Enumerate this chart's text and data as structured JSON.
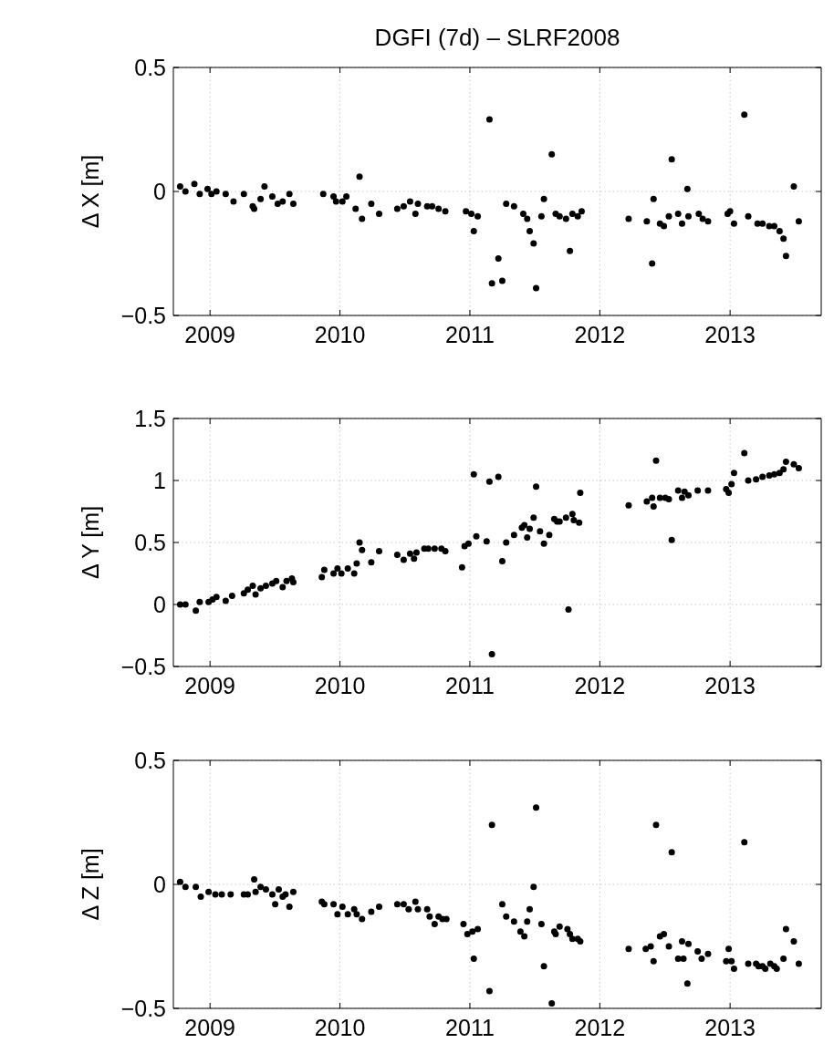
{
  "chart_data": [
    {
      "type": "scatter",
      "title": "DGFI (7d) – SLRF2008",
      "ylabel": "Δ X [m]",
      "color": "#000000",
      "marker": "circle",
      "grid": true,
      "xlim": [
        "2008-09-20",
        "2013-09-14"
      ],
      "xticks": [
        "2009",
        "2010",
        "2011",
        "2012",
        "2013"
      ],
      "ylim": [
        -0.5,
        0.5
      ],
      "yticks": [
        -0.5,
        0,
        0.5
      ],
      "x": [
        "2008-10-09",
        "2008-10-24",
        "2008-11-18",
        "2008-12-03",
        "2008-12-25",
        "2009-01-05",
        "2009-01-19",
        "2009-02-14",
        "2009-03-08",
        "2009-04-06",
        "2009-05-01",
        "2009-05-05",
        "2009-05-23",
        "2009-06-03",
        "2009-06-25",
        "2009-07-10",
        "2009-07-24",
        "2009-08-12",
        "2009-08-23",
        "2009-11-15",
        "2009-12-14",
        "2009-12-21",
        "2010-01-08",
        "2010-01-19",
        "2010-02-14",
        "2010-02-25",
        "2010-03-04",
        "2010-03-30",
        "2010-04-21",
        "2010-06-11",
        "2010-06-29",
        "2010-07-17",
        "2010-08-01",
        "2010-08-08",
        "2010-09-03",
        "2010-09-17",
        "2010-10-05",
        "2010-10-24",
        "2010-12-21",
        "2011-01-05",
        "2011-01-12",
        "2011-01-23",
        "2011-02-25",
        "2011-03-04",
        "2011-03-22",
        "2011-04-02",
        "2011-04-13",
        "2011-05-05",
        "2011-05-31",
        "2011-06-11",
        "2011-06-18",
        "2011-06-29",
        "2011-07-06",
        "2011-07-21",
        "2011-07-28",
        "2011-08-19",
        "2011-08-30",
        "2011-09-10",
        "2011-09-28",
        "2011-10-09",
        "2011-10-16",
        "2011-10-31",
        "2011-11-11",
        "2012-03-22",
        "2012-05-12",
        "2012-05-27",
        "2012-05-31",
        "2012-06-18",
        "2012-06-29",
        "2012-07-13",
        "2012-07-21",
        "2012-08-08",
        "2012-08-19",
        "2012-09-03",
        "2012-09-06",
        "2012-10-05",
        "2012-10-16",
        "2012-10-31",
        "2012-12-25",
        "2013-01-01",
        "2013-01-12",
        "2013-02-10",
        "2013-02-21",
        "2013-03-19",
        "2013-04-02",
        "2013-04-21",
        "2013-05-05",
        "2013-05-20",
        "2013-05-31",
        "2013-06-07",
        "2013-06-29",
        "2013-07-13"
      ],
      "values": [
        0.02,
        0.0,
        0.03,
        -0.01,
        0.01,
        -0.01,
        0.0,
        -0.01,
        -0.04,
        -0.01,
        -0.06,
        -0.07,
        -0.03,
        0.02,
        -0.02,
        -0.05,
        -0.04,
        -0.01,
        -0.05,
        -0.01,
        -0.02,
        -0.04,
        -0.04,
        -0.02,
        -0.07,
        0.06,
        -0.11,
        -0.05,
        -0.09,
        -0.07,
        -0.06,
        -0.04,
        -0.09,
        -0.05,
        -0.06,
        -0.06,
        -0.07,
        -0.08,
        -0.08,
        -0.09,
        -0.16,
        -0.1,
        0.29,
        -0.37,
        -0.27,
        -0.36,
        -0.05,
        -0.06,
        -0.09,
        -0.11,
        -0.16,
        -0.21,
        -0.39,
        -0.1,
        -0.03,
        0.15,
        -0.09,
        -0.1,
        -0.11,
        -0.24,
        -0.09,
        -0.1,
        -0.08,
        -0.11,
        -0.12,
        -0.29,
        -0.03,
        -0.13,
        -0.14,
        -0.1,
        0.13,
        -0.09,
        -0.13,
        0.01,
        -0.1,
        -0.09,
        -0.11,
        -0.12,
        -0.09,
        -0.08,
        -0.13,
        0.31,
        -0.1,
        -0.13,
        -0.13,
        -0.14,
        -0.14,
        -0.16,
        -0.19,
        -0.26,
        0.02,
        -0.12
      ]
    },
    {
      "type": "scatter",
      "ylabel": "Δ Y [m]",
      "color": "#000000",
      "marker": "circle",
      "grid": true,
      "xlim": [
        "2008-09-20",
        "2013-09-14"
      ],
      "xticks": [
        "2009",
        "2010",
        "2011",
        "2012",
        "2013"
      ],
      "ylim": [
        -0.5,
        1.5
      ],
      "yticks": [
        -0.5,
        0,
        0.5,
        1,
        1.5
      ],
      "x": [
        "2008-10-09",
        "2008-10-24",
        "2008-11-22",
        "2008-12-03",
        "2008-12-28",
        "2009-01-08",
        "2009-01-19",
        "2009-02-14",
        "2009-03-04",
        "2009-04-06",
        "2009-04-17",
        "2009-05-01",
        "2009-05-09",
        "2009-05-23",
        "2009-06-07",
        "2009-06-25",
        "2009-07-06",
        "2009-07-24",
        "2009-08-04",
        "2009-08-19",
        "2009-08-23",
        "2009-11-11",
        "2009-11-18",
        "2009-12-14",
        "2009-12-25",
        "2010-01-05",
        "2010-01-23",
        "2010-02-10",
        "2010-02-17",
        "2010-02-25",
        "2010-03-04",
        "2010-03-30",
        "2010-04-21",
        "2010-06-11",
        "2010-06-29",
        "2010-07-17",
        "2010-07-28",
        "2010-08-04",
        "2010-08-26",
        "2010-09-06",
        "2010-09-24",
        "2010-10-13",
        "2010-10-24",
        "2010-12-10",
        "2010-12-17",
        "2010-12-28",
        "2011-01-12",
        "2011-01-19",
        "2011-02-17",
        "2011-02-25",
        "2011-03-04",
        "2011-03-22",
        "2011-04-02",
        "2011-04-13",
        "2011-05-05",
        "2011-05-27",
        "2011-06-03",
        "2011-06-11",
        "2011-06-18",
        "2011-06-29",
        "2011-07-06",
        "2011-07-17",
        "2011-07-28",
        "2011-08-12",
        "2011-08-26",
        "2011-09-03",
        "2011-09-10",
        "2011-09-28",
        "2011-10-05",
        "2011-10-16",
        "2011-10-20",
        "2011-11-04",
        "2011-11-07",
        "2012-03-22",
        "2012-05-12",
        "2012-05-27",
        "2012-05-31",
        "2012-06-07",
        "2012-06-18",
        "2012-07-03",
        "2012-07-13",
        "2012-07-21",
        "2012-08-08",
        "2012-08-19",
        "2012-08-26",
        "2012-09-06",
        "2012-10-02",
        "2012-10-31",
        "2012-12-21",
        "2012-12-28",
        "2013-01-05",
        "2013-01-12",
        "2013-02-10",
        "2013-02-21",
        "2013-03-15",
        "2013-04-02",
        "2013-04-21",
        "2013-05-05",
        "2013-05-20",
        "2013-05-31",
        "2013-06-07",
        "2013-06-29",
        "2013-07-13"
      ],
      "values": [
        0.0,
        0.0,
        -0.05,
        0.02,
        0.02,
        0.04,
        0.06,
        0.03,
        0.07,
        0.09,
        0.12,
        0.15,
        0.08,
        0.13,
        0.15,
        0.17,
        0.19,
        0.14,
        0.19,
        0.21,
        0.18,
        0.22,
        0.28,
        0.25,
        0.29,
        0.25,
        0.29,
        0.25,
        0.33,
        0.5,
        0.44,
        0.34,
        0.43,
        0.4,
        0.36,
        0.41,
        0.37,
        0.42,
        0.45,
        0.45,
        0.45,
        0.45,
        0.43,
        0.3,
        0.47,
        0.49,
        1.05,
        0.55,
        0.51,
        0.99,
        -0.4,
        1.03,
        0.35,
        0.5,
        0.56,
        0.62,
        0.64,
        0.54,
        0.61,
        0.7,
        0.95,
        0.59,
        0.49,
        0.56,
        0.69,
        0.67,
        0.67,
        0.7,
        -0.04,
        0.73,
        0.68,
        0.66,
        0.9,
        0.8,
        0.83,
        0.86,
        0.79,
        1.16,
        0.86,
        0.86,
        0.85,
        0.52,
        0.92,
        0.86,
        0.91,
        0.88,
        0.92,
        0.92,
        0.93,
        0.9,
        0.97,
        1.06,
        1.22,
        1.0,
        1.01,
        1.03,
        1.04,
        1.05,
        1.06,
        1.09,
        1.15,
        1.13,
        1.1
      ]
    },
    {
      "type": "scatter",
      "ylabel": "Δ Z [m]",
      "color": "#000000",
      "marker": "circle",
      "grid": true,
      "xlim": [
        "2008-09-20",
        "2013-09-14"
      ],
      "xticks": [
        "2009",
        "2010",
        "2011",
        "2012",
        "2013"
      ],
      "ylim": [
        -0.5,
        0.5
      ],
      "yticks": [
        -0.5,
        0,
        0.5
      ],
      "x": [
        "2008-10-09",
        "2008-10-24",
        "2008-11-22",
        "2008-12-06",
        "2008-12-28",
        "2009-01-16",
        "2009-02-03",
        "2009-02-28",
        "2009-04-06",
        "2009-04-17",
        "2009-05-05",
        "2009-05-09",
        "2009-05-23",
        "2009-06-07",
        "2009-06-25",
        "2009-07-03",
        "2009-07-13",
        "2009-07-24",
        "2009-08-01",
        "2009-08-12",
        "2009-08-23",
        "2009-11-11",
        "2009-11-18",
        "2009-12-14",
        "2009-12-25",
        "2010-01-08",
        "2010-01-23",
        "2010-02-10",
        "2010-02-17",
        "2010-03-04",
        "2010-03-30",
        "2010-04-21",
        "2010-06-11",
        "2010-06-29",
        "2010-07-13",
        "2010-08-01",
        "2010-08-08",
        "2010-09-03",
        "2010-09-10",
        "2010-09-24",
        "2010-10-05",
        "2010-10-16",
        "2010-10-27",
        "2010-12-14",
        "2010-12-25",
        "2011-01-08",
        "2011-01-12",
        "2011-01-23",
        "2011-02-25",
        "2011-03-04",
        "2011-04-02",
        "2011-04-13",
        "2011-05-05",
        "2011-05-23",
        "2011-06-03",
        "2011-06-11",
        "2011-06-18",
        "2011-06-29",
        "2011-07-06",
        "2011-07-21",
        "2011-07-28",
        "2011-08-19",
        "2011-08-26",
        "2011-08-30",
        "2011-09-10",
        "2011-10-02",
        "2011-10-09",
        "2011-10-16",
        "2011-10-31",
        "2011-11-07",
        "2012-03-22",
        "2012-05-09",
        "2012-05-23",
        "2012-05-31",
        "2012-06-07",
        "2012-06-18",
        "2012-06-29",
        "2012-07-13",
        "2012-07-21",
        "2012-08-08",
        "2012-08-19",
        "2012-08-23",
        "2012-09-03",
        "2012-09-06",
        "2012-10-02",
        "2012-10-13",
        "2012-10-31",
        "2012-12-21",
        "2012-12-28",
        "2013-01-05",
        "2013-01-12",
        "2013-02-10",
        "2013-02-21",
        "2013-03-15",
        "2013-03-22",
        "2013-04-02",
        "2013-04-10",
        "2013-04-24",
        "2013-05-05",
        "2013-05-12",
        "2013-05-31",
        "2013-06-07",
        "2013-06-29",
        "2013-07-13"
      ],
      "values": [
        0.01,
        -0.01,
        -0.01,
        -0.05,
        -0.03,
        -0.04,
        -0.04,
        -0.04,
        -0.04,
        -0.04,
        0.02,
        -0.03,
        -0.01,
        -0.02,
        -0.04,
        -0.08,
        -0.02,
        -0.05,
        -0.04,
        -0.09,
        -0.03,
        -0.07,
        -0.08,
        -0.08,
        -0.12,
        -0.09,
        -0.12,
        -0.1,
        -0.12,
        -0.14,
        -0.11,
        -0.09,
        -0.08,
        -0.08,
        -0.1,
        -0.07,
        -0.1,
        -0.1,
        -0.13,
        -0.16,
        -0.13,
        -0.14,
        -0.14,
        -0.16,
        -0.2,
        -0.19,
        -0.3,
        -0.18,
        -0.43,
        0.24,
        -0.08,
        -0.13,
        -0.15,
        -0.19,
        -0.21,
        -0.15,
        -0.1,
        -0.01,
        0.31,
        -0.16,
        -0.33,
        -0.48,
        -0.19,
        -0.2,
        -0.17,
        -0.18,
        -0.2,
        -0.22,
        -0.22,
        -0.23,
        -0.26,
        -0.26,
        -0.25,
        -0.31,
        0.24,
        -0.21,
        -0.2,
        -0.25,
        0.13,
        -0.3,
        -0.23,
        -0.3,
        -0.4,
        -0.24,
        -0.27,
        -0.3,
        -0.28,
        -0.31,
        -0.26,
        -0.31,
        -0.34,
        0.17,
        -0.32,
        -0.32,
        -0.33,
        -0.33,
        -0.34,
        -0.32,
        -0.33,
        -0.34,
        -0.3,
        -0.18,
        -0.23,
        -0.32
      ]
    }
  ]
}
